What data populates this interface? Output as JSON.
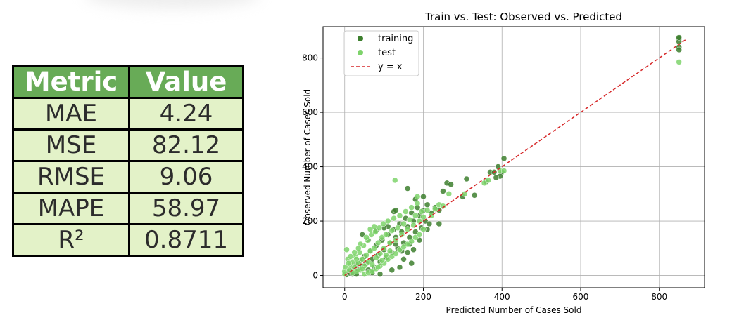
{
  "metrics_table": {
    "headers": [
      "Metric",
      "Value"
    ],
    "rows": [
      [
        "MAE",
        "4.24"
      ],
      [
        "MSE",
        "82.12"
      ],
      [
        "RMSE",
        "9.06"
      ],
      [
        "MAPE",
        "58.97"
      ],
      [
        "R²",
        "0.8711"
      ]
    ]
  },
  "chart_data": {
    "type": "scatter",
    "title": "Train vs. Test: Observed vs. Predicted",
    "xlabel": "Predicted Number of Cases Sold",
    "ylabel": "Observed Number of Cases Sold",
    "xlim": [
      -55,
      915
    ],
    "ylim": [
      -45,
      915
    ],
    "xticks": [
      0,
      200,
      400,
      600,
      800
    ],
    "yticks": [
      0,
      200,
      400,
      600,
      800
    ],
    "grid": true,
    "legend_position": "top-left",
    "colors": {
      "training": "#3d7f2e",
      "test": "#7ed36b",
      "identity": "#d62728"
    },
    "series": [
      {
        "name": "training",
        "points": [
          [
            5,
            3
          ],
          [
            10,
            12
          ],
          [
            15,
            8
          ],
          [
            20,
            25
          ],
          [
            25,
            18
          ],
          [
            30,
            40
          ],
          [
            35,
            22
          ],
          [
            40,
            55
          ],
          [
            45,
            35
          ],
          [
            50,
            70
          ],
          [
            55,
            45
          ],
          [
            60,
            20
          ],
          [
            65,
            90
          ],
          [
            70,
            60
          ],
          [
            75,
            30
          ],
          [
            80,
            110
          ],
          [
            85,
            75
          ],
          [
            90,
            50
          ],
          [
            95,
            130
          ],
          [
            100,
            95
          ],
          [
            105,
            65
          ],
          [
            110,
            150
          ],
          [
            115,
            120
          ],
          [
            120,
            85
          ],
          [
            125,
            170
          ],
          [
            130,
            140
          ],
          [
            135,
            100
          ],
          [
            140,
            190
          ],
          [
            145,
            160
          ],
          [
            150,
            120
          ],
          [
            155,
            210
          ],
          [
            160,
            180
          ],
          [
            165,
            140
          ],
          [
            170,
            230
          ],
          [
            175,
            200
          ],
          [
            180,
            160
          ],
          [
            185,
            250
          ],
          [
            190,
            220
          ],
          [
            195,
            175
          ],
          [
            200,
            240
          ],
          [
            205,
            200
          ],
          [
            210,
            260
          ],
          [
            215,
            190
          ],
          [
            125,
            235
          ],
          [
            130,
            240
          ],
          [
            160,
            320
          ],
          [
            200,
            290
          ],
          [
            240,
            240
          ],
          [
            250,
            310
          ],
          [
            260,
            340
          ],
          [
            270,
            335
          ],
          [
            300,
            290
          ],
          [
            310,
            355
          ],
          [
            330,
            295
          ],
          [
            360,
            345
          ],
          [
            370,
            380
          ],
          [
            380,
            380
          ],
          [
            390,
            400
          ],
          [
            400,
            380
          ],
          [
            405,
            430
          ],
          [
            395,
            365
          ],
          [
            385,
            360
          ],
          [
            150,
            60
          ],
          [
            170,
            45
          ],
          [
            190,
            130
          ],
          [
            140,
            30
          ],
          [
            120,
            20
          ],
          [
            110,
            180
          ],
          [
            180,
            280
          ],
          [
            230,
            250
          ],
          [
            220,
            230
          ],
          [
            850,
            870
          ],
          [
            850,
            860
          ],
          [
            850,
            840
          ],
          [
            850,
            830
          ],
          [
            850,
            875
          ],
          [
            45,
            150
          ],
          [
            60,
            130
          ],
          [
            80,
            165
          ],
          [
            100,
            175
          ],
          [
            175,
            95
          ],
          [
            160,
            85
          ],
          [
            210,
            170
          ],
          [
            240,
            190
          ],
          [
            70,
            10
          ],
          [
            90,
            5
          ],
          [
            30,
            5
          ],
          [
            130,
            115
          ],
          [
            145,
            90
          ],
          [
            165,
            115
          ],
          [
            20,
            5
          ]
        ]
      },
      {
        "name": "test",
        "points": [
          [
            0,
            5
          ],
          [
            0,
            15
          ],
          [
            2,
            30
          ],
          [
            5,
            95
          ],
          [
            8,
            60
          ],
          [
            12,
            20
          ],
          [
            15,
            40
          ],
          [
            20,
            50
          ],
          [
            25,
            30
          ],
          [
            28,
            70
          ],
          [
            30,
            15
          ],
          [
            35,
            45
          ],
          [
            38,
            85
          ],
          [
            40,
            20
          ],
          [
            45,
            60
          ],
          [
            48,
            110
          ],
          [
            50,
            35
          ],
          [
            55,
            75
          ],
          [
            58,
            130
          ],
          [
            60,
            50
          ],
          [
            65,
            90
          ],
          [
            68,
            150
          ],
          [
            70,
            40
          ],
          [
            75,
            100
          ],
          [
            78,
            160
          ],
          [
            80,
            65
          ],
          [
            85,
            120
          ],
          [
            88,
            175
          ],
          [
            90,
            80
          ],
          [
            95,
            140
          ],
          [
            98,
            190
          ],
          [
            100,
            100
          ],
          [
            105,
            150
          ],
          [
            110,
            200
          ],
          [
            115,
            120
          ],
          [
            120,
            165
          ],
          [
            125,
            210
          ],
          [
            128,
            350
          ],
          [
            130,
            130
          ],
          [
            135,
            175
          ],
          [
            140,
            220
          ],
          [
            145,
            150
          ],
          [
            150,
            190
          ],
          [
            155,
            235
          ],
          [
            160,
            170
          ],
          [
            165,
            205
          ],
          [
            170,
            250
          ],
          [
            175,
            185
          ],
          [
            180,
            220
          ],
          [
            185,
            265
          ],
          [
            190,
            200
          ],
          [
            195,
            235
          ],
          [
            200,
            215
          ],
          [
            210,
            240
          ],
          [
            220,
            220
          ],
          [
            230,
            245
          ],
          [
            240,
            260
          ],
          [
            250,
            255
          ],
          [
            265,
            300
          ],
          [
            185,
            290
          ],
          [
            305,
            300
          ],
          [
            355,
            340
          ],
          [
            365,
            350
          ],
          [
            395,
            385
          ],
          [
            405,
            385
          ],
          [
            850,
            785
          ],
          [
            50,
            5
          ],
          [
            60,
            10
          ],
          [
            70,
            15
          ],
          [
            80,
            25
          ],
          [
            90,
            35
          ],
          [
            100,
            45
          ],
          [
            110,
            60
          ],
          [
            120,
            70
          ],
          [
            130,
            80
          ],
          [
            140,
            95
          ],
          [
            150,
            105
          ],
          [
            160,
            115
          ],
          [
            170,
            125
          ],
          [
            180,
            140
          ],
          [
            190,
            150
          ],
          [
            200,
            170
          ],
          [
            40,
            115
          ],
          [
            55,
            140
          ],
          [
            65,
            170
          ],
          [
            75,
            180
          ],
          [
            35,
            100
          ],
          [
            25,
            85
          ],
          [
            15,
            70
          ],
          [
            10,
            45
          ],
          [
            20,
            10
          ],
          [
            30,
            60
          ],
          [
            45,
            25
          ],
          [
            85,
            30
          ],
          [
            95,
            55
          ],
          [
            105,
            75
          ],
          [
            115,
            90
          ]
        ]
      },
      {
        "name": "y = x",
        "x": [
          0,
          870
        ],
        "y": [
          0,
          870
        ]
      }
    ]
  }
}
